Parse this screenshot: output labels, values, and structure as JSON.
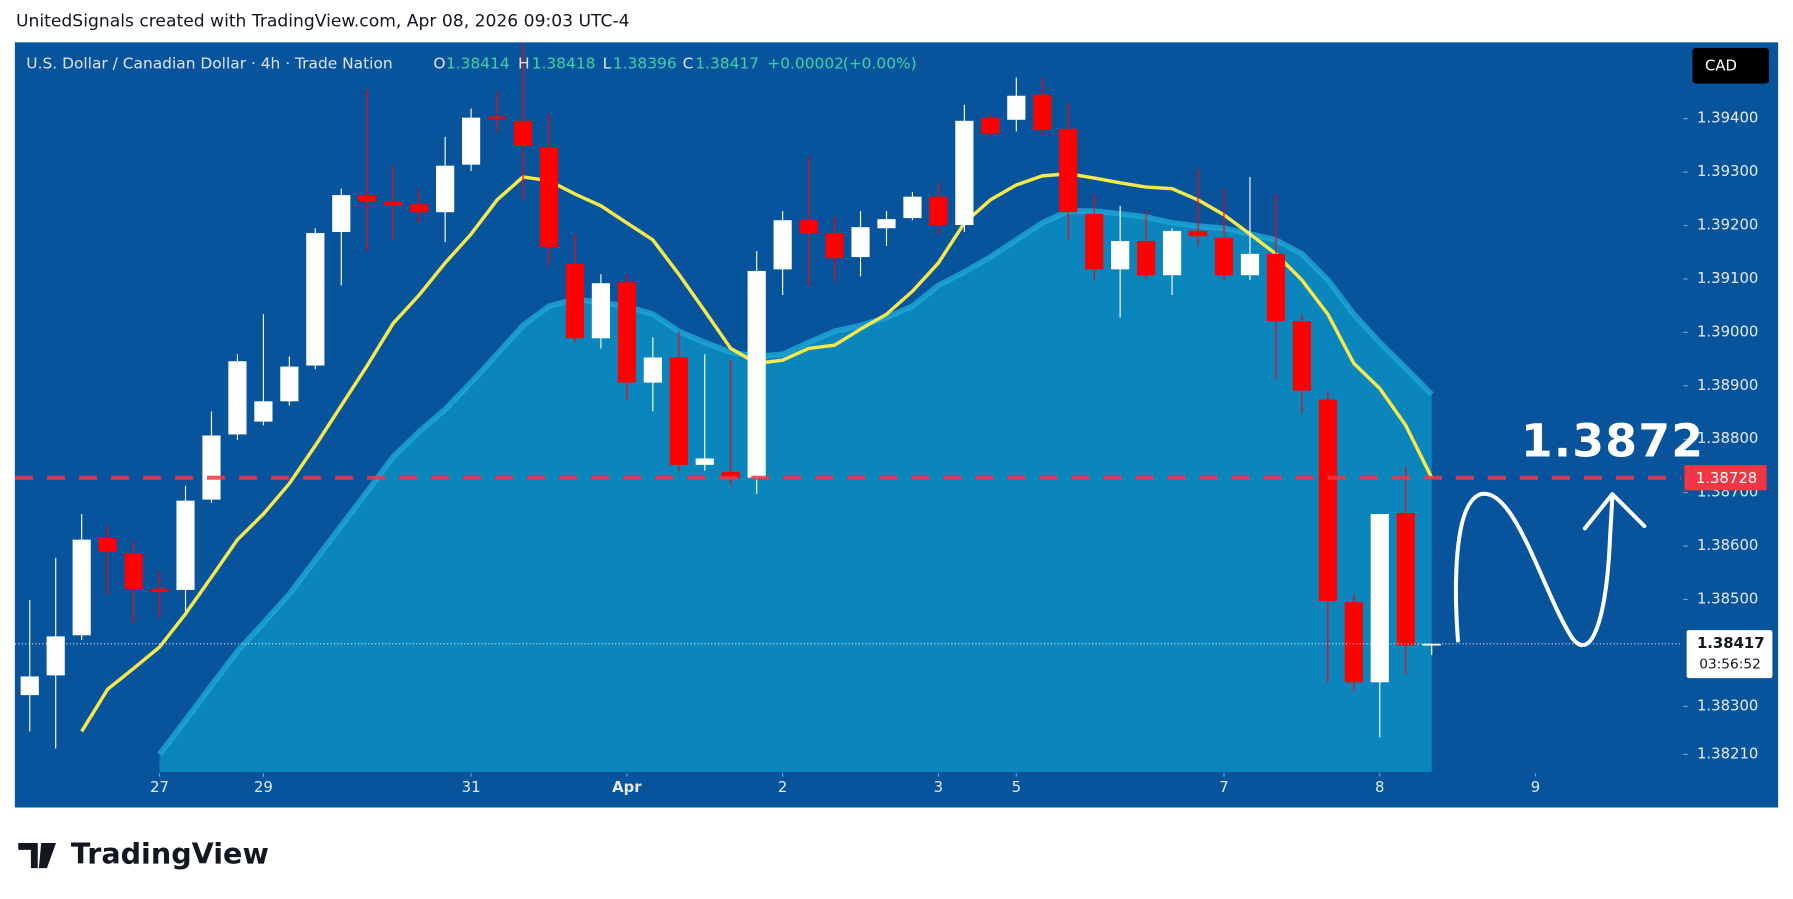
{
  "header": "UnitedSignals created with TradingView.com, Apr 08, 2026 09:03 UTC-4",
  "logo": "TradingView",
  "chart_data": {
    "type": "candlestick",
    "title": "U.S. Dollar / Canadian Dollar · 4h · Trade Nation",
    "ohlc_labels": [
      "O",
      "H",
      "L",
      "C"
    ],
    "change": "+0.00002",
    "change_pct": "(+0.00%)",
    "currency": "CAD",
    "countdown": "03:56:52",
    "annotation": "1.3872",
    "up_color": "#ffffff",
    "down_color": "#ff0000",
    "ohlc": [
      [
        1.38321,
        1.38499,
        1.38253,
        1.38356
      ],
      [
        1.38358,
        1.38578,
        1.38221,
        1.38431
      ],
      [
        1.38433,
        1.3866,
        1.38424,
        1.38612
      ],
      [
        1.38615,
        1.38638,
        1.3851,
        1.38589
      ],
      [
        1.38587,
        1.3861,
        1.38456,
        1.3852
      ],
      [
        1.3852,
        1.38553,
        1.38467,
        1.38514
      ],
      [
        1.38518,
        1.38713,
        1.38478,
        1.38685
      ],
      [
        1.38687,
        1.38852,
        1.38681,
        1.38807
      ],
      [
        1.38809,
        1.38959,
        1.38799,
        1.38946
      ],
      [
        1.38833,
        1.39034,
        1.38826,
        1.38871
      ],
      [
        1.38871,
        1.38955,
        1.38863,
        1.38936
      ],
      [
        1.38938,
        1.39195,
        1.38931,
        1.39186
      ],
      [
        1.39188,
        1.39269,
        1.39088,
        1.39257
      ],
      [
        1.39257,
        1.39456,
        1.39152,
        1.39244
      ],
      [
        1.39244,
        1.39312,
        1.39173,
        1.39237
      ],
      [
        1.3924,
        1.39269,
        1.39205,
        1.39225
      ],
      [
        1.39225,
        1.39366,
        1.39169,
        1.39312
      ],
      [
        1.39314,
        1.39419,
        1.39302,
        1.39402
      ],
      [
        1.39404,
        1.39451,
        1.39376,
        1.394
      ],
      [
        1.39396,
        1.3954,
        1.39248,
        1.39349
      ],
      [
        1.39347,
        1.39409,
        1.39126,
        1.3916
      ],
      [
        1.39128,
        1.39184,
        1.38981,
        1.38989
      ],
      [
        1.38989,
        1.39109,
        1.3897,
        1.39092
      ],
      [
        1.39094,
        1.39109,
        1.38874,
        1.38906
      ],
      [
        1.38906,
        1.38991,
        1.38852,
        1.38953
      ],
      [
        1.38953,
        1.39002,
        1.38741,
        1.38752
      ],
      [
        1.38752,
        1.38959,
        1.38741,
        1.38764
      ],
      [
        1.38739,
        1.38948,
        1.38713,
        1.38728
      ],
      [
        1.38728,
        1.39152,
        1.38698,
        1.39115
      ],
      [
        1.39118,
        1.39227,
        1.3907,
        1.3921
      ],
      [
        1.3921,
        1.39329,
        1.39088,
        1.39186
      ],
      [
        1.39186,
        1.39216,
        1.39096,
        1.39139
      ],
      [
        1.39141,
        1.39227,
        1.39105,
        1.39197
      ],
      [
        1.39195,
        1.39227,
        1.39162,
        1.39212
      ],
      [
        1.39214,
        1.39263,
        1.3921,
        1.39254
      ],
      [
        1.39254,
        1.3928,
        1.39184,
        1.39201
      ],
      [
        1.39201,
        1.39426,
        1.39188,
        1.39396
      ],
      [
        1.39402,
        1.39409,
        1.39366,
        1.39372
      ],
      [
        1.39398,
        1.39477,
        1.39376,
        1.39443
      ],
      [
        1.39445,
        1.39477,
        1.3937,
        1.39379
      ],
      [
        1.39381,
        1.3943,
        1.39173,
        1.39225
      ],
      [
        1.39222,
        1.39259,
        1.39098,
        1.39118
      ],
      [
        1.39118,
        1.39237,
        1.39028,
        1.39171
      ],
      [
        1.39171,
        1.39227,
        1.391,
        1.39107
      ],
      [
        1.39107,
        1.39195,
        1.3907,
        1.3919
      ],
      [
        1.3919,
        1.39306,
        1.39162,
        1.3918
      ],
      [
        1.39177,
        1.39269,
        1.39098,
        1.39107
      ],
      [
        1.39107,
        1.39291,
        1.39098,
        1.39147
      ],
      [
        1.39147,
        1.39259,
        1.38912,
        1.39021
      ],
      [
        1.39021,
        1.39034,
        1.38848,
        1.38891
      ],
      [
        1.38874,
        1.38891,
        1.38345,
        1.38497
      ],
      [
        1.38495,
        1.3851,
        1.38328,
        1.38345
      ],
      [
        1.38345,
        1.3866,
        1.38242,
        1.3866
      ],
      [
        1.38662,
        1.38749,
        1.3836,
        1.38414
      ],
      [
        1.38414,
        1.38418,
        1.38396,
        1.38417
      ]
    ],
    "overlays": [
      {
        "type": "area",
        "color": "#0a8fc2",
        "values": [
          null,
          null,
          null,
          null,
          null,
          1.3821,
          1.38274,
          1.38339,
          1.38403,
          1.38456,
          1.3851,
          1.38574,
          1.38638,
          1.38702,
          1.38767,
          1.38814,
          1.38856,
          1.38906,
          1.38959,
          1.39013,
          1.39049,
          1.39062,
          1.39056,
          1.39049,
          1.39034,
          1.39002,
          1.38981,
          1.38963,
          1.38955,
          1.38959,
          1.38981,
          1.39002,
          1.39013,
          1.39028,
          1.39049,
          1.39088,
          1.39113,
          1.39141,
          1.39173,
          1.39205,
          1.39227,
          1.39227,
          1.39222,
          1.39216,
          1.39205,
          1.39199,
          1.39195,
          1.39184,
          1.39173,
          1.39147,
          1.39098,
          1.39034,
          1.38981,
          1.38933,
          1.38884
        ]
      },
      {
        "type": "line",
        "color": "#f6e94a",
        "values": [
          null,
          null,
          1.38253,
          1.38332,
          1.38371,
          1.38411,
          1.38473,
          1.38542,
          1.38612,
          1.3866,
          1.38717,
          1.38788,
          1.38863,
          1.38938,
          1.39017,
          1.3907,
          1.3913,
          1.39184,
          1.39248,
          1.39291,
          1.39284,
          1.39259,
          1.39237,
          1.39205,
          1.39173,
          1.39109,
          1.3904,
          1.3897,
          1.38942,
          1.38948,
          1.3897,
          1.38976,
          1.39006,
          1.39034,
          1.39077,
          1.3913,
          1.39205,
          1.39248,
          1.39276,
          1.39293,
          1.39297,
          1.39289,
          1.3928,
          1.39272,
          1.39269,
          1.39248,
          1.3922,
          1.39184,
          1.39147,
          1.39098,
          1.39034,
          1.38942,
          1.38895,
          1.38826,
          1.38728
        ]
      }
    ],
    "price_line": {
      "value": 1.38728,
      "color": "#f23645"
    },
    "xlim": [
      -0.573,
      63.6
    ],
    "xticks": [
      {
        "value": 5,
        "label": "27"
      },
      {
        "value": 9,
        "label": "29"
      },
      {
        "value": 17,
        "label": "31"
      },
      {
        "value": 23,
        "label": "Apr"
      },
      {
        "value": 29,
        "label": "2"
      },
      {
        "value": 35,
        "label": "3"
      },
      {
        "value": 38,
        "label": "5"
      },
      {
        "value": 46,
        "label": "7"
      },
      {
        "value": 52,
        "label": "8"
      },
      {
        "value": 58,
        "label": "9"
      }
    ],
    "ylim": [
      1.38177,
      1.39543
    ],
    "yticks": [
      {
        "value": 1.3821,
        "label": "1.38210"
      },
      {
        "value": 1.383,
        "label": "1.38300"
      },
      {
        "value": 1.385,
        "label": "1.38500"
      },
      {
        "value": 1.386,
        "label": "1.38600"
      },
      {
        "value": 1.387,
        "label": "1.38700"
      },
      {
        "value": 1.388,
        "label": "1.38800"
      },
      {
        "value": 1.389,
        "label": "1.38900"
      },
      {
        "value": 1.39,
        "label": "1.39000"
      },
      {
        "value": 1.391,
        "label": "1.39100"
      },
      {
        "value": 1.392,
        "label": "1.39200"
      },
      {
        "value": 1.393,
        "label": "1.39300"
      },
      {
        "value": 1.394,
        "label": "1.39400"
      }
    ]
  }
}
